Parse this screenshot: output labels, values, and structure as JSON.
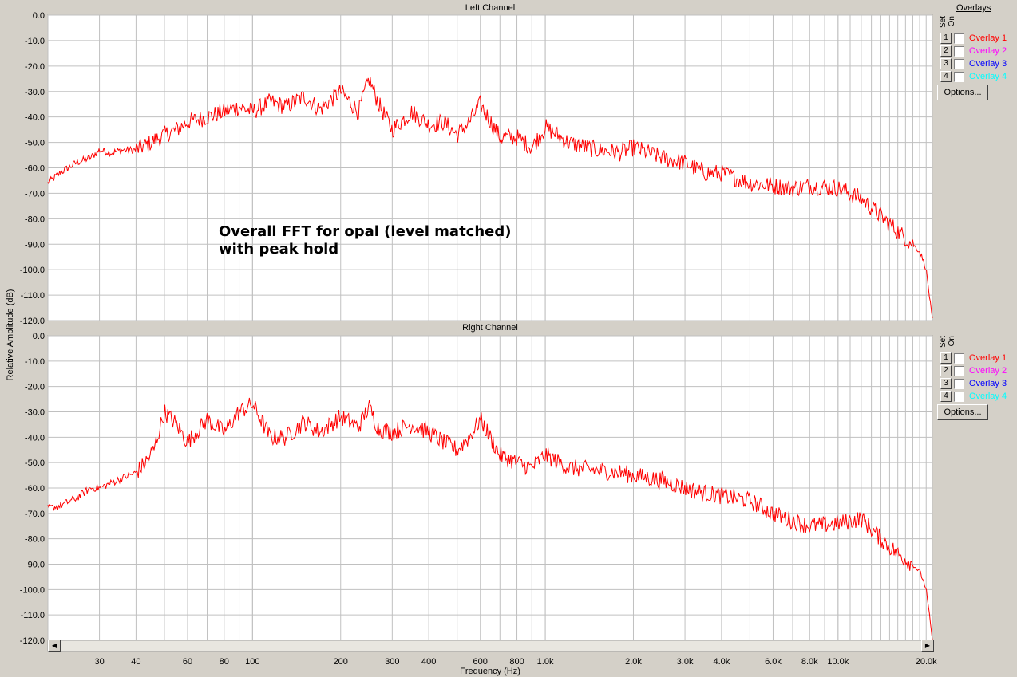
{
  "annotation": {
    "line1": "Overall FFT for opal (level matched)",
    "line2": "with peak hold"
  },
  "overlay_panel": {
    "title": "Overlays",
    "set_label": "Set",
    "on_label": "On",
    "items": [
      {
        "num": "1",
        "label": "Overlay 1",
        "color": "#ff0000"
      },
      {
        "num": "2",
        "label": "Overlay 2",
        "color": "#ff00ff"
      },
      {
        "num": "3",
        "label": "Overlay 3",
        "color": "#0000ff"
      },
      {
        "num": "4",
        "label": "Overlay 4",
        "color": "#00ffff"
      }
    ],
    "options_label": "Options..."
  },
  "chart_data": [
    {
      "type": "line",
      "title": "Left Channel",
      "ylabel": "Relative Amplitude (dB)",
      "xlabel": "Frequency (Hz)",
      "xscale": "log",
      "xlim": [
        20,
        21000
      ],
      "ylim": [
        -120,
        0
      ],
      "grid": true,
      "series_color": "#ff0000",
      "x": [
        20,
        22,
        25,
        28,
        30,
        33,
        36,
        40,
        45,
        50,
        55,
        60,
        70,
        80,
        90,
        100,
        115,
        130,
        150,
        170,
        200,
        230,
        250,
        270,
        300,
        350,
        400,
        450,
        500,
        550,
        600,
        700,
        800,
        900,
        1000,
        1200,
        1500,
        1800,
        2000,
        2500,
        3000,
        3500,
        4000,
        5000,
        6000,
        7000,
        8000,
        10000,
        12000,
        14000,
        16000,
        18000,
        19000,
        19500,
        20000,
        20500,
        21000
      ],
      "y": [
        -66,
        -62,
        -58,
        -56,
        -53,
        -54,
        -53,
        -53,
        -50,
        -47,
        -45,
        -42,
        -40,
        -38,
        -36,
        -38,
        -34,
        -36,
        -32,
        -37,
        -30,
        -38,
        -25,
        -35,
        -45,
        -38,
        -43,
        -42,
        -47,
        -42,
        -35,
        -48,
        -48,
        -52,
        -44,
        -50,
        -53,
        -54,
        -52,
        -56,
        -58,
        -62,
        -62,
        -66,
        -67,
        -68,
        -67,
        -68,
        -72,
        -79,
        -85,
        -90,
        -93,
        -96,
        -100,
        -110,
        -120
      ]
    },
    {
      "type": "line",
      "title": "Right Channel",
      "ylabel": "Relative Amplitude (dB)",
      "xlabel": "Frequency (Hz)",
      "xscale": "log",
      "xlim": [
        20,
        21000
      ],
      "ylim": [
        -120,
        0
      ],
      "grid": true,
      "series_color": "#ff0000",
      "x": [
        20,
        22,
        25,
        28,
        30,
        33,
        36,
        40,
        43,
        46,
        50,
        55,
        60,
        70,
        80,
        90,
        100,
        115,
        130,
        150,
        170,
        200,
        230,
        250,
        270,
        300,
        350,
        400,
        450,
        500,
        550,
        600,
        700,
        800,
        900,
        1000,
        1200,
        1500,
        1800,
        2000,
        2500,
        3000,
        3500,
        4000,
        5000,
        6000,
        7000,
        8000,
        10000,
        12000,
        14000,
        16000,
        18000,
        19000,
        19500,
        20000,
        20500,
        21000
      ],
      "y": [
        -68,
        -67,
        -64,
        -60,
        -60,
        -58,
        -56,
        -54,
        -50,
        -45,
        -30,
        -35,
        -42,
        -33,
        -38,
        -30,
        -27,
        -40,
        -40,
        -34,
        -38,
        -32,
        -36,
        -28,
        -37,
        -38,
        -35,
        -38,
        -42,
        -45,
        -40,
        -33,
        -47,
        -50,
        -52,
        -47,
        -52,
        -53,
        -54,
        -55,
        -57,
        -60,
        -62,
        -63,
        -65,
        -70,
        -73,
        -75,
        -74,
        -72,
        -80,
        -86,
        -90,
        -93,
        -96,
        -100,
        -110,
        -120
      ]
    }
  ],
  "x_tick_labels": [
    "30",
    "40",
    "60",
    "80",
    "100",
    "200",
    "300",
    "400",
    "600",
    "800",
    "1.0k",
    "2.0k",
    "3.0k",
    "4.0k",
    "6.0k",
    "8.0k",
    "10.0k",
    "20.0k"
  ],
  "y_tick_labels": [
    "0.0",
    "-10.0",
    "-20.0",
    "-30.0",
    "-40.0",
    "-50.0",
    "-60.0",
    "-70.0",
    "-80.0",
    "-90.0",
    "-100.0",
    "-110.0",
    "-120.0"
  ]
}
